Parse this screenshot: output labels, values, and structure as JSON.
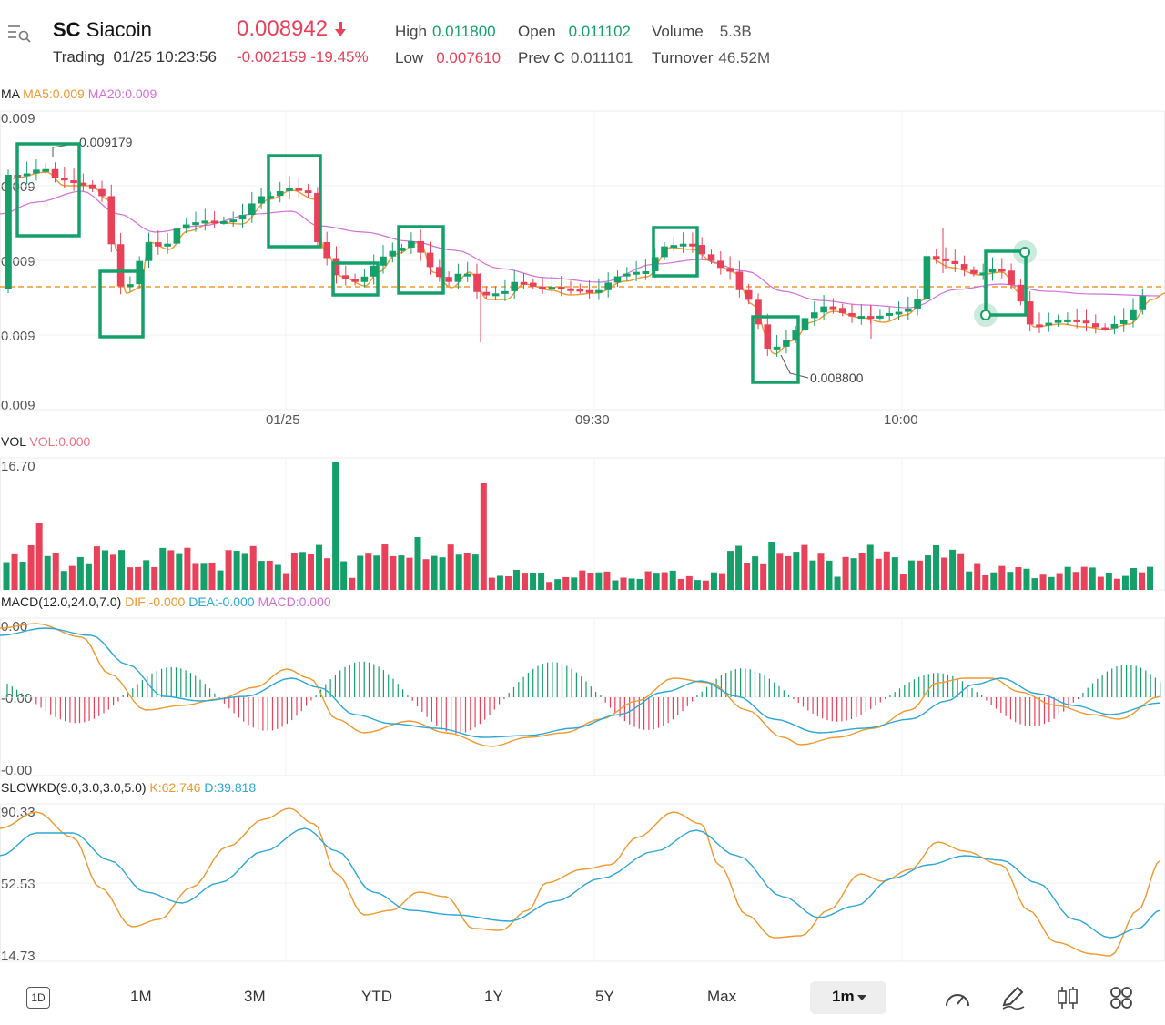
{
  "header": {
    "symbol": "SC",
    "name": "Siacoin",
    "status": "Trading",
    "datetime": "01/25 10:23:56",
    "price": "0.008942",
    "change": "-0.002159",
    "change_pct": "-19.45%",
    "stats": {
      "high_label": "High",
      "high": "0.011800",
      "open_label": "Open",
      "open": "0.011102",
      "volume_label": "Volume",
      "volume": "5.3B",
      "low_label": "Low",
      "low": "0.007610",
      "prevc_label": "Prev C",
      "prevc": "0.011101",
      "turnover_label": "Turnover",
      "turnover": "46.52M"
    }
  },
  "main_chart": {
    "indicator_label": "MA",
    "ma5_label": "MA5:0.009",
    "ma20_label": "MA20:0.009",
    "y_ticks": [
      "0.009",
      "0.009",
      "0.009",
      "0.009",
      "0.009"
    ],
    "x_ticks": [
      "01/25",
      "09:30",
      "10:00"
    ],
    "high_annotation": "0.009179",
    "low_annotation": "0.008800",
    "colors": {
      "up": "#15a06a",
      "down": "#e9415a",
      "ma5": "#f0982e",
      "ma20": "#d46fd8",
      "current_line": "#f0982e",
      "box": "#15a06a"
    }
  },
  "volume_chart": {
    "label": "VOL",
    "value_label": "VOL:0.000",
    "y_top": "16.70"
  },
  "macd_chart": {
    "label": "MACD(12.0,24.0,7.0)",
    "dif_label": "DIF:-0.000",
    "dea_label": "DEA:-0.000",
    "macd_label": "MACD:0.000",
    "y_ticks": [
      "0.00",
      "-0.00",
      "-0.00"
    ],
    "colors": {
      "dif": "#f0982e",
      "dea": "#2ba7d6",
      "macd": "#d46fd8"
    }
  },
  "kd_chart": {
    "label": "SLOWKD(9.0,3.0,3.0,5.0)",
    "k_label": "K:62.746",
    "d_label": "D:39.818",
    "y_ticks": [
      "90.33",
      "52.53",
      "14.73"
    ],
    "colors": {
      "k": "#f0982e",
      "d": "#2ba7d6"
    }
  },
  "toolbar": {
    "periods": [
      "1M",
      "3M",
      "YTD",
      "1Y",
      "5Y",
      "Max"
    ],
    "interval": "1m",
    "day_icon_label": "1D"
  },
  "chart_data": {
    "type": "candlestick",
    "x": [
      "01/25",
      "09:30",
      "10:00"
    ],
    "high_marker": 0.009179,
    "low_marker": 0.0088,
    "volume_max": 16.7,
    "kd_axis": [
      14.73,
      52.53,
      90.33
    ],
    "kd_last": {
      "K": 62.746,
      "D": 39.818
    }
  }
}
